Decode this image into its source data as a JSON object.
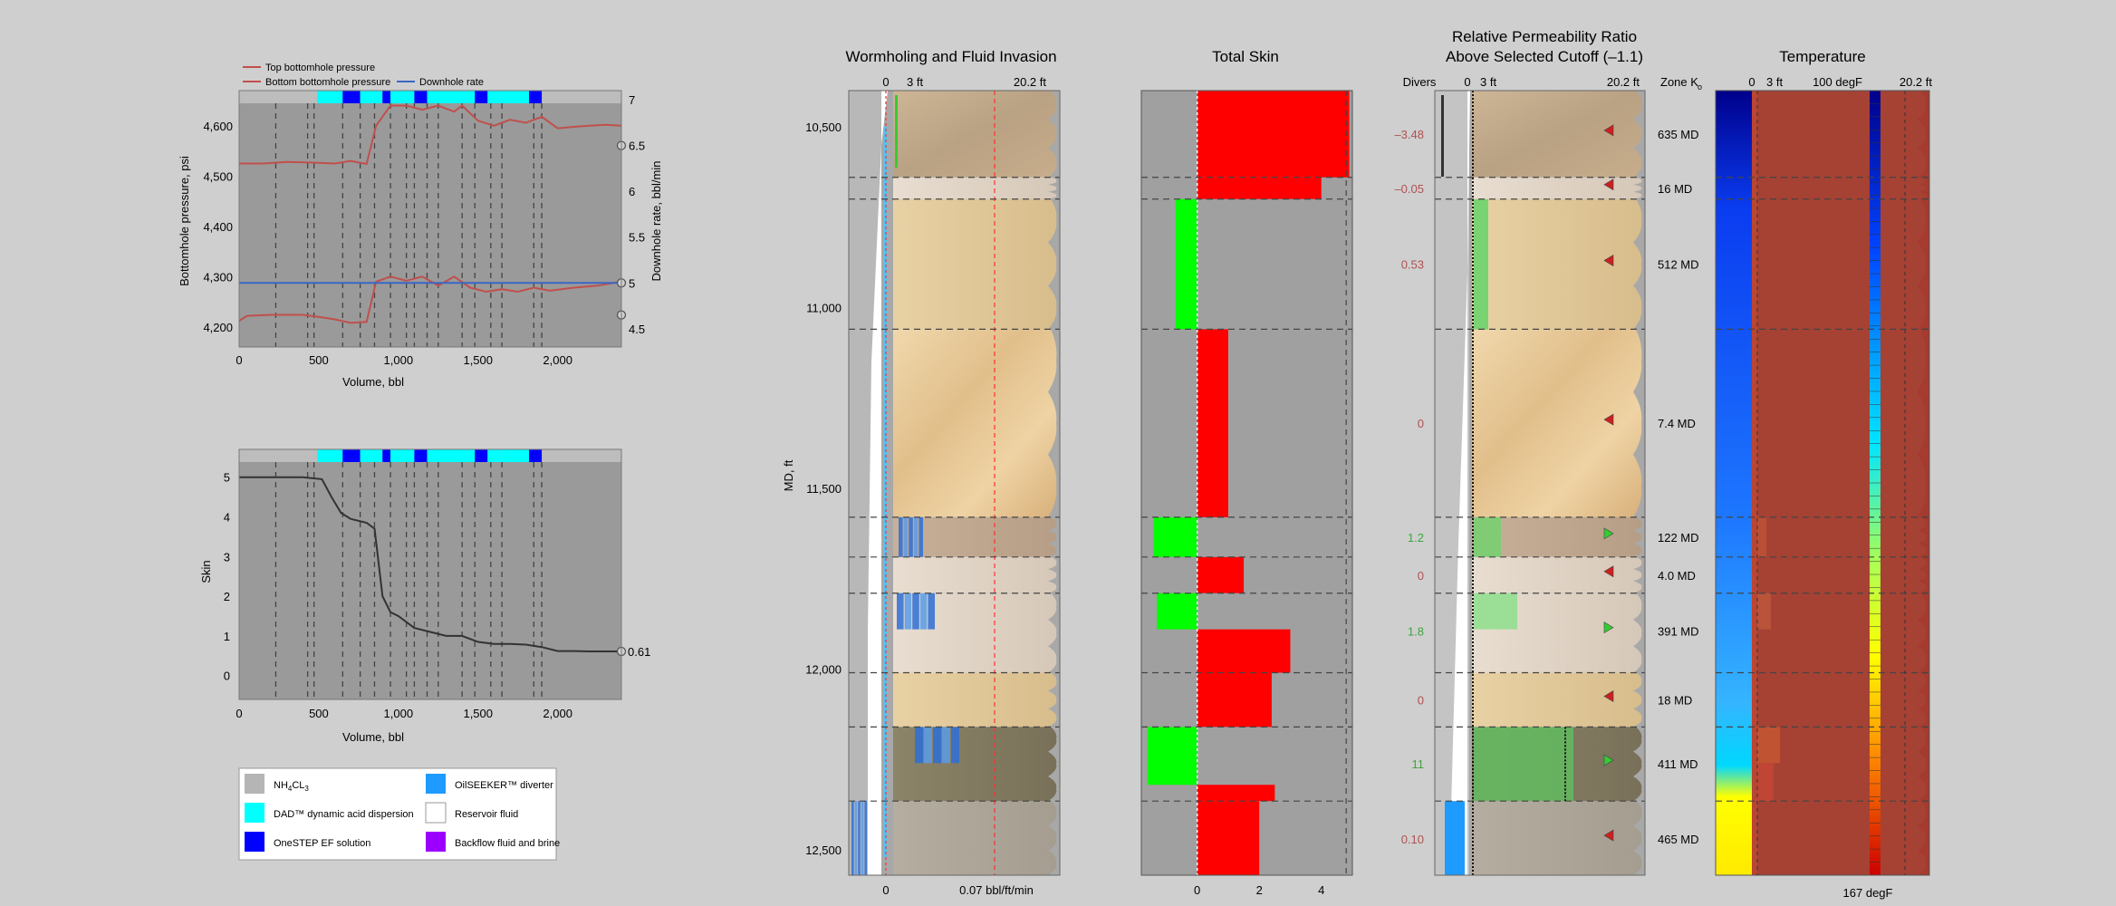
{
  "colors": {
    "background": "#cfcfcf",
    "plot_bg": "#9a9a9a",
    "plot_top": "#bdbdbd",
    "pressure": "#c0504d",
    "rate": "#3a67c5",
    "skin_line": "#333333",
    "skin_pos": "#ff0000",
    "skin_neg": "#00ff00",
    "nh4cl": "#b5b5b5",
    "dad": "#00ffff",
    "onestep": "#0000ff",
    "oilseeker": "#1e9bff",
    "reservoir": "#ffffff",
    "backflow": "#9b00ff"
  },
  "chart_data": [
    {
      "type": "line",
      "xlabel": "Volume, bbl",
      "ylabel": "Bottomhole pressure, psi",
      "y2label": "Downhole rate, bbl/min",
      "xlim": [
        0,
        2400
      ],
      "ylim": [
        4160,
        4670
      ],
      "y2lim": [
        4.3,
        7.1
      ],
      "x_ticks": [
        "0",
        "500",
        "1,000",
        "1,500",
        "2,000"
      ],
      "x_tick_values": [
        0,
        500,
        1000,
        1500,
        2000
      ],
      "y_ticks": [
        "4,200",
        "4,300",
        "4,400",
        "4,500",
        "4,600"
      ],
      "y_tick_values": [
        4200,
        4300,
        4400,
        4500,
        4600
      ],
      "y2_ticks": [
        "4.5",
        "5",
        "5.5",
        "6",
        "6.5",
        "7"
      ],
      "y2_tick_values": [
        4.5,
        5,
        5.5,
        6,
        6.5,
        7
      ],
      "legend": [
        "Top bottomhole pressure",
        "Bottom bottomhole pressure",
        "Downhole rate"
      ],
      "stage_boundaries": [
        230,
        430,
        470,
        650,
        760,
        850,
        950,
        1050,
        1100,
        1180,
        1250,
        1400,
        1480,
        1580,
        1650,
        1850,
        1900
      ],
      "fluid_bar": [
        {
          "from": 490,
          "to": 650,
          "fluid": "dad"
        },
        {
          "from": 650,
          "to": 760,
          "fluid": "onestep"
        },
        {
          "from": 760,
          "to": 900,
          "fluid": "dad"
        },
        {
          "from": 900,
          "to": 950,
          "fluid": "onestep"
        },
        {
          "from": 950,
          "to": 1100,
          "fluid": "dad"
        },
        {
          "from": 1100,
          "to": 1180,
          "fluid": "onestep"
        },
        {
          "from": 1180,
          "to": 1480,
          "fluid": "dad"
        },
        {
          "from": 1480,
          "to": 1560,
          "fluid": "onestep"
        },
        {
          "from": 1560,
          "to": 1640,
          "fluid": "dad"
        },
        {
          "from": 1640,
          "to": 1820,
          "fluid": "dad"
        },
        {
          "from": 1820,
          "to": 1900,
          "fluid": "onestep"
        }
      ],
      "series": [
        {
          "name": "Top bottomhole pressure",
          "axis": "left",
          "x": [
            0,
            150,
            300,
            450,
            600,
            700,
            800,
            860,
            950,
            1050,
            1150,
            1250,
            1350,
            1400,
            1500,
            1600,
            1700,
            1800,
            1900,
            2000,
            2100,
            2200,
            2300,
            2400
          ],
          "y": [
            4525,
            4525,
            4528,
            4527,
            4525,
            4530,
            4524,
            4600,
            4640,
            4640,
            4632,
            4640,
            4628,
            4640,
            4610,
            4600,
            4612,
            4606,
            4618,
            4595,
            4598,
            4600,
            4602,
            4600
          ]
        },
        {
          "name": "Bottom bottomhole pressure",
          "axis": "left",
          "x": [
            0,
            50,
            200,
            400,
            500,
            600,
            700,
            800,
            860,
            950,
            1050,
            1150,
            1250,
            1350,
            1450,
            1550,
            1650,
            1750,
            1850,
            1950,
            2100,
            2250,
            2400
          ],
          "y": [
            4212,
            4222,
            4224,
            4224,
            4220,
            4215,
            4208,
            4210,
            4290,
            4300,
            4292,
            4300,
            4282,
            4300,
            4278,
            4270,
            4275,
            4270,
            4278,
            4272,
            4278,
            4282,
            4290
          ]
        },
        {
          "name": "Downhole rate",
          "axis": "right",
          "x": [
            0,
            2400
          ],
          "y": [
            5,
            5
          ]
        }
      ],
      "end_markers": [
        {
          "axis": "right",
          "value": 6.5
        },
        {
          "axis": "right",
          "value": 5
        },
        {
          "axis": "right",
          "value": 4.65
        }
      ]
    },
    {
      "type": "line",
      "xlabel": "Volume, bbl",
      "ylabel": "Skin",
      "xlim": [
        0,
        2400
      ],
      "ylim": [
        -0.6,
        5.7
      ],
      "x_ticks": [
        "0",
        "500",
        "1,000",
        "1,500",
        "2,000"
      ],
      "x_tick_values": [
        0,
        500,
        1000,
        1500,
        2000
      ],
      "y_ticks": [
        "0",
        "1",
        "2",
        "3",
        "4",
        "5"
      ],
      "y_tick_values": [
        0,
        1,
        2,
        3,
        4,
        5
      ],
      "end_label": "0.61",
      "series": [
        {
          "name": "Skin",
          "x": [
            0,
            400,
            520,
            580,
            640,
            700,
            800,
            850,
            900,
            950,
            1000,
            1050,
            1100,
            1200,
            1300,
            1400,
            1500,
            1600,
            1700,
            1800,
            1900,
            2000,
            2100,
            2200,
            2300,
            2400
          ],
          "y": [
            5,
            5,
            4.95,
            4.5,
            4.1,
            3.95,
            3.85,
            3.7,
            2.0,
            1.6,
            1.5,
            1.35,
            1.2,
            1.1,
            1.0,
            1.0,
            0.85,
            0.8,
            0.8,
            0.78,
            0.72,
            0.62,
            0.62,
            0.61,
            0.61,
            0.61
          ]
        }
      ]
    },
    {
      "type": "well_track",
      "title": "Wormholing and Fluid Invasion",
      "y_axis_label": "MD, ft",
      "depth_range": [
        10400,
        12570
      ],
      "depth_ticks": [
        "10,500",
        "11,000",
        "11,500",
        "12,000",
        "12,500"
      ],
      "depth_tick_values": [
        10500,
        11000,
        11500,
        12000,
        12500
      ],
      "top_labels": [
        "0",
        "3 ft",
        "20.2 ft"
      ],
      "bottom_labels": [
        "0",
        "0.07 bbl/ft/min"
      ],
      "zone_boundaries": [
        10400,
        10640,
        10700,
        11060,
        11580,
        11690,
        11790,
        12010,
        12160,
        12365,
        12570
      ]
    },
    {
      "type": "bar",
      "title": "Total Skin",
      "xlim": [
        -1.8,
        5
      ],
      "x_ticks": [
        "0",
        "2",
        "4"
      ],
      "x_tick_values": [
        0,
        2,
        4
      ],
      "bars": [
        {
          "from": 10400,
          "to": 10640,
          "value": 4.9
        },
        {
          "from": 10640,
          "to": 10700,
          "value": 4.0
        },
        {
          "from": 10700,
          "to": 11060,
          "value": -0.7
        },
        {
          "from": 11060,
          "to": 11580,
          "value": 1.0
        },
        {
          "from": 11580,
          "to": 11690,
          "value": -1.4
        },
        {
          "from": 11690,
          "to": 11790,
          "value": 1.5
        },
        {
          "from": 11790,
          "to": 11890,
          "value": -1.3
        },
        {
          "from": 11890,
          "to": 12010,
          "value": 3.0
        },
        {
          "from": 12010,
          "to": 12160,
          "value": 2.4
        },
        {
          "from": 12160,
          "to": 12320,
          "value": -1.6
        },
        {
          "from": 12320,
          "to": 12365,
          "value": 2.5
        },
        {
          "from": 12365,
          "to": 12570,
          "value": 2.0
        }
      ]
    },
    {
      "type": "well_track",
      "title": "Relative Permeability Ratio",
      "subtitle": "Above Selected Cutoff (–1.1)",
      "header_labels": [
        "Divers",
        "0",
        "3 ft",
        "20.2 ft",
        "Zone K"
      ],
      "zone_k_sub": "o",
      "ratios": [
        {
          "depth": 10520,
          "text": "–3.48",
          "color": "#b05050"
        },
        {
          "depth": 10670,
          "text": "–0.05",
          "color": "#b05050"
        },
        {
          "depth": 10880,
          "text": "0.53",
          "color": "#b05050"
        },
        {
          "depth": 11320,
          "text": "0",
          "color": "#b05050"
        },
        {
          "depth": 11635,
          "text": "1.2",
          "color": "#3fa53f"
        },
        {
          "depth": 11740,
          "text": "0",
          "color": "#b05050"
        },
        {
          "depth": 11895,
          "text": "1.8",
          "color": "#3fa53f"
        },
        {
          "depth": 12085,
          "text": "0",
          "color": "#b05050"
        },
        {
          "depth": 12262,
          "text": "11",
          "color": "#3fa53f"
        },
        {
          "depth": 12470,
          "text": "0.10",
          "color": "#b05050"
        }
      ],
      "zone_k": [
        {
          "depth": 10520,
          "text": "635 MD"
        },
        {
          "depth": 10670,
          "text": "16 MD"
        },
        {
          "depth": 10880,
          "text": "512 MD"
        },
        {
          "depth": 11320,
          "text": "7.4 MD"
        },
        {
          "depth": 11635,
          "text": "122 MD"
        },
        {
          "depth": 11740,
          "text": "4.0 MD"
        },
        {
          "depth": 11895,
          "text": "391 MD"
        },
        {
          "depth": 12085,
          "text": "18 MD"
        },
        {
          "depth": 12262,
          "text": "411 MD"
        },
        {
          "depth": 12470,
          "text": "465 MD"
        }
      ]
    },
    {
      "type": "heatmap",
      "title": "Temperature",
      "top_labels": [
        "0",
        "3 ft",
        "100 degF",
        "20.2 ft"
      ],
      "bottom_label": "167 degF"
    }
  ],
  "legend_box": [
    {
      "key": "nh4cl",
      "label_main": "NH",
      "label_sub1": "4",
      "label_mid": "CL",
      "label_sub2": "3"
    },
    {
      "key": "oilseeker",
      "label": "OilSEEKER™ diverter"
    },
    {
      "key": "dad",
      "label": "DAD™ dynamic acid dispersion"
    },
    {
      "key": "reservoir",
      "label": "Reservoir fluid"
    },
    {
      "key": "onestep",
      "label": "OneSTEP EF solution"
    },
    {
      "key": "backflow",
      "label": "Backflow fluid and brine"
    }
  ]
}
